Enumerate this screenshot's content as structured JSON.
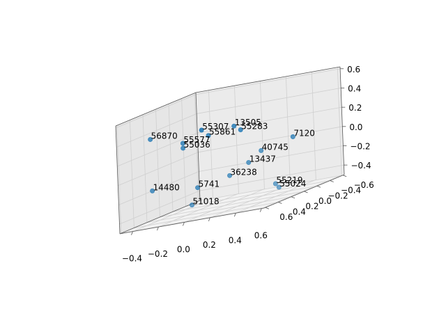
{
  "chart_data": {
    "type": "scatter",
    "projection": "3d",
    "grid": true,
    "title": "",
    "xlabel": "",
    "ylabel": "",
    "zlabel": "",
    "marker_color": "#1f77b4",
    "x_ticks": [
      "−0.4",
      "−0.2",
      "0.0",
      "0.2",
      "0.4",
      "0.6"
    ],
    "y_ticks": [
      "−0.6",
      "−0.4",
      "−0.2",
      "0.0",
      "0.2",
      "0.4",
      "0.6"
    ],
    "z_ticks": [
      "−0.4",
      "−0.2",
      "0.0",
      "0.2",
      "0.4",
      "0.6"
    ],
    "points": [
      {
        "label": "55307",
        "x": 0.1,
        "y": 0.5,
        "z": 0.4
      },
      {
        "label": "13505",
        "x": 0.25,
        "y": 0.3,
        "z": 0.35
      },
      {
        "label": "55283",
        "x": 0.3,
        "y": 0.3,
        "z": 0.3
      },
      {
        "label": "55861",
        "x": 0.05,
        "y": 0.3,
        "z": 0.3
      },
      {
        "label": "56870",
        "x": -0.45,
        "y": 0.2,
        "z": 0.35
      },
      {
        "label": "55577",
        "x": -0.2,
        "y": 0.2,
        "z": 0.25
      },
      {
        "label": "55036",
        "x": -0.2,
        "y": 0.2,
        "z": 0.2
      },
      {
        "label": "7120",
        "x": 0.6,
        "y": 0.1,
        "z": 0.1
      },
      {
        "label": "40745",
        "x": 0.3,
        "y": 0.0,
        "z": 0.0
      },
      {
        "label": "13437",
        "x": 0.2,
        "y": 0.0,
        "z": -0.1
      },
      {
        "label": "36238",
        "x": 0.05,
        "y": 0.0,
        "z": -0.2
      },
      {
        "label": "5741",
        "x": -0.15,
        "y": 0.1,
        "z": -0.25
      },
      {
        "label": "14480",
        "x": -0.5,
        "y": 0.1,
        "z": -0.2
      },
      {
        "label": "55219",
        "x": 0.3,
        "y": -0.2,
        "z": -0.4
      },
      {
        "label": "55024",
        "x": 0.3,
        "y": -0.25,
        "z": -0.45
      },
      {
        "label": "51018",
        "x": -0.3,
        "y": -0.1,
        "z": -0.45
      }
    ]
  }
}
